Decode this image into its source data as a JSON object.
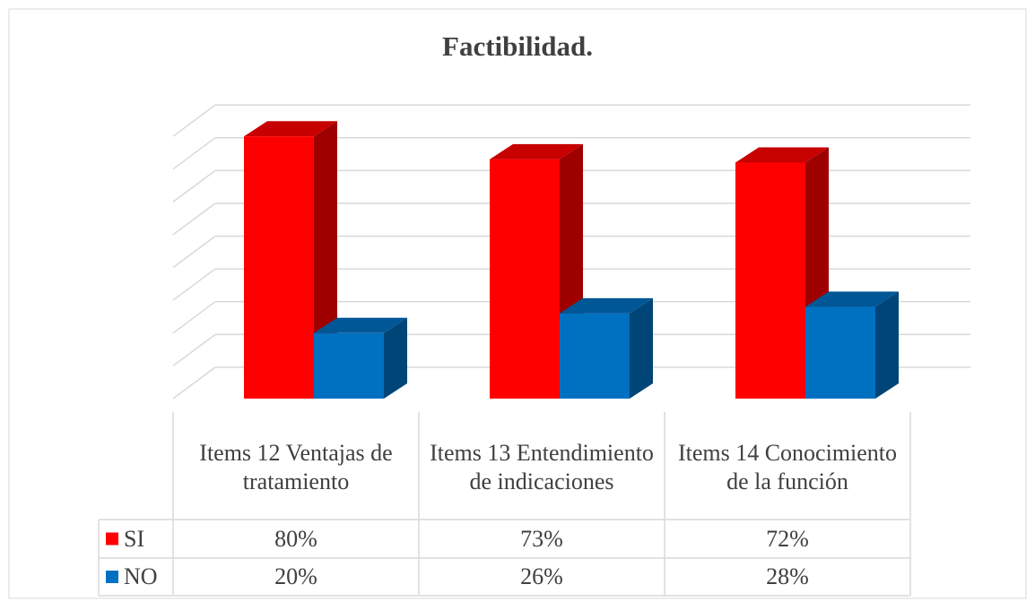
{
  "chart_data": {
    "type": "bar3d",
    "title": "Factibilidad.",
    "categories": [
      "Items 12 Ventajas de tratamiento",
      "Items 13 Entendimiento de indicaciones",
      "Items 14 Conocimiento de la función"
    ],
    "series": [
      {
        "name": "SI",
        "color": "#ff0000",
        "values": [
          80,
          73,
          72
        ],
        "value_labels": [
          "80%",
          "73%",
          "72%"
        ]
      },
      {
        "name": "NO",
        "color": "#0070c0",
        "values": [
          20,
          26,
          28
        ],
        "value_labels": [
          "20%",
          "26%",
          "28%"
        ]
      }
    ],
    "ylim": [
      0,
      80
    ],
    "yticks": [
      0,
      10,
      20,
      30,
      40,
      50,
      60,
      70,
      80
    ],
    "grid": true
  }
}
